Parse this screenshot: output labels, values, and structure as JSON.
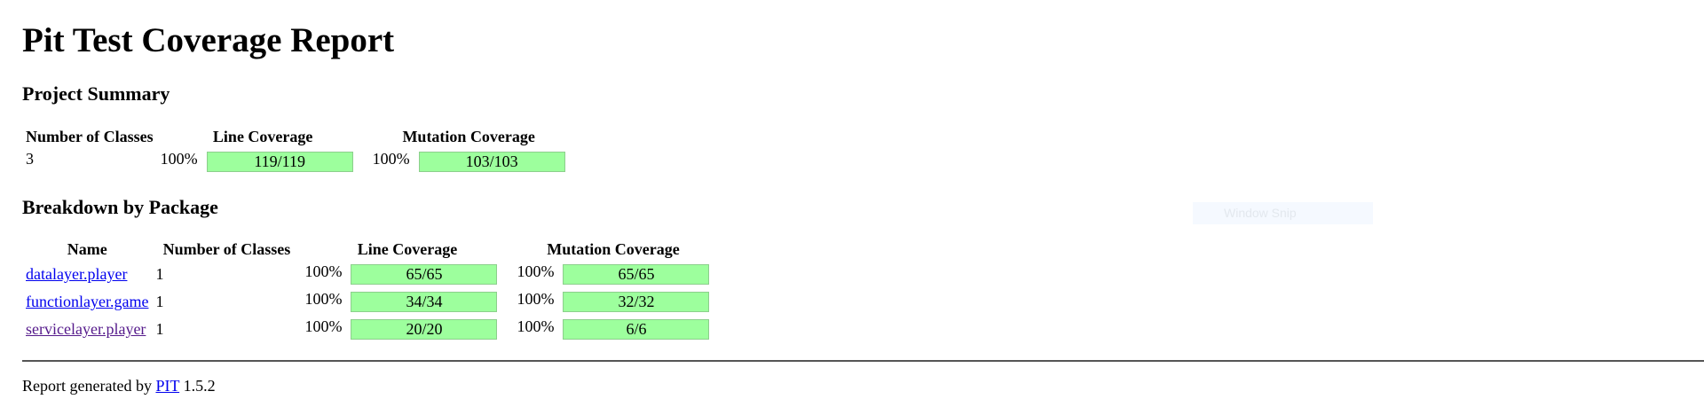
{
  "title": "Pit Test Coverage Report",
  "project_summary": {
    "heading": "Project Summary",
    "headers": {
      "classes": "Number of Classes",
      "line": "Line Coverage",
      "mutation": "Mutation Coverage"
    },
    "row": {
      "classes": "3",
      "line_pct": "100%",
      "line_ratio": "119/119",
      "mutation_pct": "100%",
      "mutation_ratio": "103/103"
    }
  },
  "breakdown": {
    "heading": "Breakdown by Package",
    "headers": {
      "name": "Name",
      "classes": "Number of Classes",
      "line": "Line Coverage",
      "mutation": "Mutation Coverage"
    },
    "rows": [
      {
        "name": "datalayer.player",
        "classes": "1",
        "line_pct": "100%",
        "line_ratio": "65/65",
        "mutation_pct": "100%",
        "mutation_ratio": "65/65"
      },
      {
        "name": "functionlayer.game",
        "classes": "1",
        "line_pct": "100%",
        "line_ratio": "34/34",
        "mutation_pct": "100%",
        "mutation_ratio": "32/32"
      },
      {
        "name": "servicelayer.player",
        "classes": "1",
        "line_pct": "100%",
        "line_ratio": "20/20",
        "mutation_pct": "100%",
        "mutation_ratio": "6/6"
      }
    ]
  },
  "overlay": {
    "label": "Window Snip"
  },
  "footer": {
    "prefix": "Report generated by",
    "link": "PIT",
    "version": "1.5.2"
  },
  "colors": {
    "coverage_bar": "#9dff9d",
    "link": "#0000ee",
    "visited_link": "#551a8b"
  }
}
